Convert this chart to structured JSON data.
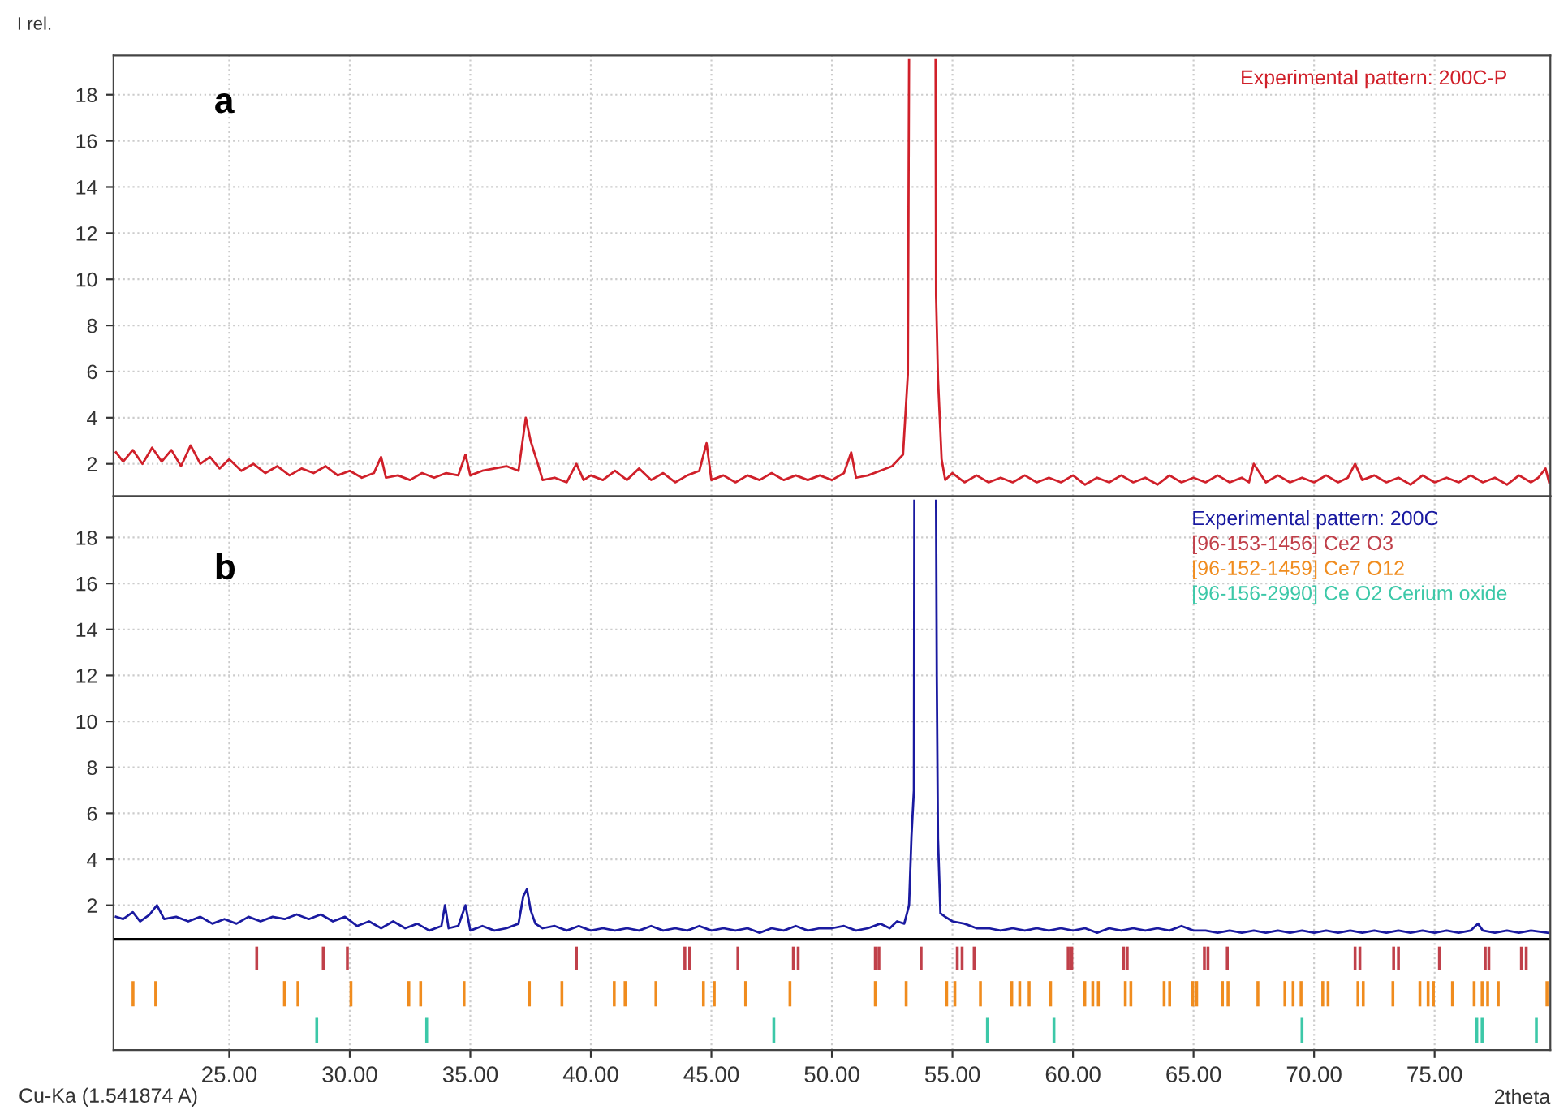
{
  "chart_data": [
    {
      "type": "line",
      "ylabel": "I rel.",
      "annotations": [
        "a"
      ],
      "xlim": [
        20.2,
        79.8
      ],
      "ylim": [
        0.6,
        19.7
      ],
      "xticks": [
        {
          "value": 25,
          "label": null
        },
        {
          "value": 30,
          "label": null
        },
        {
          "value": 35,
          "label": null
        },
        {
          "value": 40,
          "label": null
        },
        {
          "value": 45,
          "label": null
        },
        {
          "value": 50,
          "label": null
        },
        {
          "value": 55,
          "label": null
        },
        {
          "value": 60,
          "label": null
        },
        {
          "value": 65,
          "label": null
        },
        {
          "value": 70,
          "label": null
        },
        {
          "value": 75,
          "label": null
        }
      ],
      "yticks": [
        2,
        4,
        6,
        8,
        10,
        12,
        14,
        16,
        18
      ],
      "tick_labels": "y",
      "grid": true,
      "legend": "top right",
      "marker": "none",
      "line_style": "solid",
      "series": [
        {
          "name": "Experimental pattern: 200C-P",
          "color": "#d0202a",
          "x": [
            20.3,
            20.6,
            21.0,
            21.4,
            21.8,
            22.2,
            22.6,
            23.0,
            23.4,
            23.8,
            24.2,
            24.6,
            25.0,
            25.5,
            26.0,
            26.5,
            27.0,
            27.5,
            28.0,
            28.5,
            29.0,
            29.5,
            30.0,
            30.5,
            31.0,
            31.3,
            31.5,
            32.0,
            32.5,
            33.0,
            33.5,
            34.0,
            34.5,
            34.8,
            35.0,
            35.5,
            36.0,
            36.5,
            37.0,
            37.3,
            37.5,
            37.8,
            38.0,
            38.5,
            39.0,
            39.4,
            39.7,
            40.0,
            40.5,
            41.0,
            41.5,
            42.0,
            42.5,
            43.0,
            43.5,
            44.0,
            44.5,
            44.8,
            45.0,
            45.5,
            46.0,
            46.5,
            47.0,
            47.5,
            48.0,
            48.5,
            49.0,
            49.5,
            50.0,
            50.5,
            50.8,
            51.0,
            51.5,
            52.0,
            52.5,
            52.95,
            53.15,
            53.2,
            53.75,
            54.3,
            54.32,
            54.4,
            54.55,
            54.7,
            55.0,
            55.5,
            56.0,
            56.5,
            57.0,
            57.5,
            58.0,
            58.5,
            59.0,
            59.5,
            60.0,
            60.5,
            61.0,
            61.5,
            62.0,
            62.5,
            63.0,
            63.5,
            64.0,
            64.5,
            65.0,
            65.5,
            66.0,
            66.5,
            67.0,
            67.3,
            67.5,
            68.0,
            68.5,
            69.0,
            69.5,
            70.0,
            70.5,
            71.0,
            71.4,
            71.7,
            72.0,
            72.5,
            73.0,
            73.5,
            74.0,
            74.5,
            75.0,
            75.5,
            76.0,
            76.5,
            77.0,
            77.5,
            78.0,
            78.5,
            79.0,
            79.3,
            79.6,
            79.75
          ],
          "values": [
            2.5,
            2.1,
            2.6,
            2.0,
            2.7,
            2.1,
            2.6,
            1.9,
            2.8,
            2.0,
            2.3,
            1.8,
            2.2,
            1.7,
            2.0,
            1.6,
            1.9,
            1.5,
            1.8,
            1.6,
            1.9,
            1.5,
            1.7,
            1.4,
            1.6,
            2.3,
            1.4,
            1.5,
            1.3,
            1.6,
            1.4,
            1.6,
            1.5,
            2.4,
            1.5,
            1.7,
            1.8,
            1.9,
            1.7,
            4.0,
            3.0,
            2.0,
            1.3,
            1.4,
            1.2,
            2.0,
            1.3,
            1.5,
            1.3,
            1.7,
            1.3,
            1.8,
            1.3,
            1.6,
            1.2,
            1.5,
            1.7,
            2.9,
            1.3,
            1.5,
            1.2,
            1.5,
            1.3,
            1.6,
            1.3,
            1.5,
            1.3,
            1.5,
            1.3,
            1.6,
            2.5,
            1.4,
            1.5,
            1.7,
            1.9,
            2.4,
            5.9,
            19.5,
            null,
            19.5,
            9.3,
            5.7,
            2.2,
            1.3,
            1.6,
            1.2,
            1.5,
            1.2,
            1.4,
            1.2,
            1.5,
            1.2,
            1.4,
            1.2,
            1.5,
            1.1,
            1.4,
            1.2,
            1.5,
            1.2,
            1.4,
            1.1,
            1.5,
            1.2,
            1.4,
            1.2,
            1.5,
            1.2,
            1.4,
            1.2,
            2.0,
            1.2,
            1.5,
            1.2,
            1.4,
            1.2,
            1.5,
            1.2,
            1.4,
            2.0,
            1.3,
            1.5,
            1.2,
            1.4,
            1.1,
            1.5,
            1.2,
            1.4,
            1.2,
            1.5,
            1.2,
            1.4,
            1.1,
            1.5,
            1.2,
            1.4,
            1.8,
            1.2
          ]
        }
      ]
    },
    {
      "type": "line",
      "xlabel": "2theta",
      "annotations": [
        "b",
        "Cu-Ka (1.541874 A)"
      ],
      "xlim": [
        20.2,
        79.8
      ],
      "ylim": [
        -4.3,
        19.8
      ],
      "xticks": [
        {
          "value": 25,
          "label": "25.00"
        },
        {
          "value": 30,
          "label": "30.00"
        },
        {
          "value": 35,
          "label": "35.00"
        },
        {
          "value": 40,
          "label": "40.00"
        },
        {
          "value": 45,
          "label": "45.00"
        },
        {
          "value": 50,
          "label": "50.00"
        },
        {
          "value": 55,
          "label": "55.00"
        },
        {
          "value": 60,
          "label": "60.00"
        },
        {
          "value": 65,
          "label": "65.00"
        },
        {
          "value": 70,
          "label": "70.00"
        },
        {
          "value": 75,
          "label": "75.00"
        }
      ],
      "yticks": [
        2,
        4,
        6,
        8,
        10,
        12,
        14,
        16,
        18
      ],
      "grid": true,
      "legend": "top right",
      "marker": "none",
      "line_style": "solid",
      "ref_lines": [
        {
          "axis": "y",
          "value": 0.52,
          "color": "#000000"
        }
      ],
      "series": [
        {
          "name": "Experimental pattern: 200C",
          "color": "#1a1aa0",
          "x": [
            20.3,
            20.6,
            21.0,
            21.3,
            21.7,
            22.0,
            22.3,
            22.8,
            23.3,
            23.8,
            24.3,
            24.8,
            25.3,
            25.8,
            26.3,
            26.8,
            27.3,
            27.8,
            28.3,
            28.8,
            29.3,
            29.8,
            30.3,
            30.8,
            31.3,
            31.8,
            32.3,
            32.8,
            33.3,
            33.8,
            33.95,
            34.1,
            34.5,
            34.8,
            35.0,
            35.5,
            36.0,
            36.5,
            37.0,
            37.2,
            37.35,
            37.5,
            37.7,
            38.0,
            38.5,
            39.0,
            39.5,
            40.0,
            40.5,
            41.0,
            41.5,
            42.0,
            42.5,
            43.0,
            43.5,
            44.0,
            44.5,
            45.0,
            45.5,
            46.0,
            46.5,
            47.0,
            47.5,
            48.0,
            48.5,
            49.0,
            49.5,
            50.0,
            50.5,
            51.0,
            51.5,
            52.0,
            52.4,
            52.7,
            53.0,
            53.2,
            53.3,
            53.4,
            53.42,
            53.9,
            54.32,
            54.35,
            54.4,
            54.5,
            54.7,
            55.0,
            55.5,
            56.0,
            56.5,
            57.0,
            57.5,
            58.0,
            58.5,
            59.0,
            59.5,
            60.0,
            60.5,
            61.0,
            61.5,
            62.0,
            62.5,
            63.0,
            63.5,
            64.0,
            64.5,
            65.0,
            65.5,
            66.0,
            66.5,
            67.0,
            67.5,
            68.0,
            68.5,
            69.0,
            69.5,
            70.0,
            70.5,
            71.0,
            71.5,
            72.0,
            72.5,
            73.0,
            73.5,
            74.0,
            74.5,
            75.0,
            75.5,
            76.0,
            76.5,
            76.8,
            77.0,
            77.5,
            78.0,
            78.5,
            79.0,
            79.7
          ],
          "values": [
            1.5,
            1.4,
            1.7,
            1.3,
            1.6,
            2.0,
            1.4,
            1.5,
            1.3,
            1.5,
            1.2,
            1.4,
            1.2,
            1.5,
            1.3,
            1.5,
            1.4,
            1.6,
            1.4,
            1.6,
            1.3,
            1.5,
            1.1,
            1.3,
            1.0,
            1.3,
            1.0,
            1.2,
            0.9,
            1.1,
            2.0,
            1.0,
            1.1,
            2.0,
            0.9,
            1.1,
            0.9,
            1.0,
            1.2,
            2.4,
            2.7,
            1.8,
            1.2,
            1.0,
            1.1,
            0.9,
            1.1,
            0.9,
            1.0,
            0.9,
            1.0,
            0.9,
            1.1,
            0.9,
            1.0,
            0.9,
            1.1,
            0.9,
            1.0,
            0.9,
            1.0,
            0.8,
            1.0,
            0.9,
            1.1,
            0.9,
            1.0,
            1.0,
            1.1,
            0.9,
            1.0,
            1.2,
            1.0,
            1.3,
            1.2,
            2.0,
            5.0,
            7.0,
            19.6,
            null,
            19.6,
            11.9,
            4.9,
            1.65,
            1.5,
            1.3,
            1.2,
            1.0,
            1.0,
            0.9,
            1.0,
            0.9,
            1.0,
            0.9,
            1.0,
            0.9,
            1.0,
            0.8,
            1.0,
            0.9,
            1.0,
            0.9,
            1.0,
            0.9,
            1.1,
            0.9,
            0.9,
            0.8,
            0.9,
            0.8,
            0.9,
            0.8,
            0.9,
            0.8,
            0.9,
            0.8,
            0.9,
            0.8,
            0.9,
            0.8,
            0.9,
            0.8,
            0.9,
            0.8,
            0.9,
            0.8,
            0.9,
            0.8,
            0.9,
            1.2,
            0.9,
            0.8,
            0.9,
            0.8,
            0.9,
            0.8
          ]
        },
        {
          "name": "[96-153-1456] Ce2 O3",
          "type": "bar",
          "color": "#c0404a",
          "x": [
            26.14,
            28.9,
            29.9,
            39.4,
            43.9,
            44.1,
            46.1,
            48.4,
            48.6,
            51.8,
            51.95,
            53.7,
            55.2,
            55.4,
            55.9,
            59.8,
            59.95,
            62.1,
            62.25,
            65.45,
            65.6,
            66.4,
            71.7,
            71.9,
            73.3,
            73.5,
            75.2,
            77.1,
            77.25,
            78.6,
            78.8
          ],
          "base": [
            -0.8,
            -0.8,
            -0.8,
            -0.8,
            -0.8,
            -0.8,
            -0.8,
            -0.8,
            -0.8,
            -0.8,
            -0.8,
            -0.8,
            -0.8,
            -0.8,
            -0.8,
            -0.8,
            -0.8,
            -0.8,
            -0.8,
            -0.8,
            -0.8,
            -0.8,
            -0.8,
            -0.8,
            -0.8,
            -0.8,
            -0.8,
            -0.8,
            -0.8,
            -0.8,
            -0.8
          ],
          "values": [
            1.0,
            1.0,
            1.0,
            1.0,
            1.0,
            1.0,
            1.0,
            1.0,
            1.0,
            1.0,
            1.0,
            1.0,
            1.0,
            1.0,
            1.0,
            1.0,
            1.0,
            1.0,
            1.0,
            1.0,
            1.0,
            1.0,
            1.0,
            1.0,
            1.0,
            1.0,
            1.0,
            1.0,
            1.0,
            1.0,
            1.0
          ]
        },
        {
          "name": "[96-152-1459] Ce7 O12",
          "type": "bar",
          "color": "#f08c1e",
          "x": [
            21.01,
            21.95,
            27.29,
            27.85,
            30.05,
            32.45,
            32.94,
            34.74,
            37.45,
            38.8,
            40.97,
            41.42,
            42.7,
            44.67,
            45.12,
            46.42,
            48.26,
            51.8,
            53.08,
            54.76,
            55.1,
            56.16,
            57.46,
            57.79,
            58.18,
            59.07,
            60.49,
            60.82,
            61.05,
            62.17,
            62.4,
            63.78,
            64.01,
            64.97,
            65.13,
            66.2,
            66.43,
            67.67,
            68.79,
            69.13,
            69.46,
            70.36,
            70.58,
            71.82,
            72.04,
            73.27,
            74.39,
            74.73,
            74.95,
            75.74,
            76.64,
            76.97,
            77.2,
            77.64,
            79.66
          ],
          "base": [
            -2.4,
            -2.4,
            -2.4,
            -2.4,
            -2.4,
            -2.4,
            -2.4,
            -2.4,
            -2.4,
            -2.4,
            -2.4,
            -2.4,
            -2.4,
            -2.4,
            -2.4,
            -2.4,
            -2.4,
            -2.4,
            -2.4,
            -2.4,
            -2.4,
            -2.4,
            -2.4,
            -2.4,
            -2.4,
            -2.4,
            -2.4,
            -2.4,
            -2.4,
            -2.4,
            -2.4,
            -2.4,
            -2.4,
            -2.4,
            -2.4,
            -2.4,
            -2.4,
            -2.4,
            -2.4,
            -2.4,
            -2.4,
            -2.4,
            -2.4,
            -2.4,
            -2.4,
            -2.4,
            -2.4,
            -2.4,
            -2.4,
            -2.4,
            -2.4,
            -2.4,
            -2.4,
            -2.4,
            -2.4
          ],
          "values": [
            1.1,
            1.1,
            1.1,
            1.1,
            1.1,
            1.1,
            1.1,
            1.1,
            1.1,
            1.1,
            1.1,
            1.1,
            1.1,
            1.1,
            1.1,
            1.1,
            1.1,
            1.1,
            1.1,
            1.1,
            1.1,
            1.1,
            1.1,
            1.1,
            1.1,
            1.1,
            1.1,
            1.1,
            1.1,
            1.1,
            1.1,
            1.1,
            1.1,
            1.1,
            1.1,
            1.1,
            1.1,
            1.1,
            1.1,
            1.1,
            1.1,
            1.1,
            1.1,
            1.1,
            1.1,
            1.1,
            1.1,
            1.1,
            1.1,
            1.1,
            1.1,
            1.1,
            1.1,
            1.1,
            1.1
          ]
        },
        {
          "name": "[96-156-2990] Ce O2 Cerium oxide",
          "type": "bar",
          "color": "#3cc8a8",
          "x": [
            28.63,
            33.19,
            47.59,
            56.45,
            59.21,
            69.5,
            76.75,
            76.97,
            79.22
          ],
          "base": [
            -4.0,
            -4.0,
            -4.0,
            -4.0,
            -4.0,
            -4.0,
            -4.0,
            -4.0,
            -4.0
          ],
          "values": [
            1.1,
            1.1,
            1.1,
            1.1,
            1.1,
            1.1,
            1.1,
            1.1,
            1.1
          ]
        }
      ]
    }
  ]
}
